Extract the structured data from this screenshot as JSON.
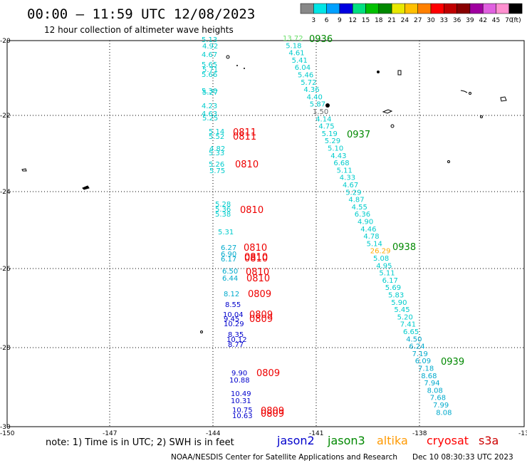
{
  "header": {
    "title": "00:00 – 11:59 UTC 12/08/2023",
    "subtitle": "12 hour collection of altimeter wave heights"
  },
  "legend": {
    "bins": [
      {
        "label": "3",
        "color": "#888888"
      },
      {
        "label": "6",
        "color": "#00e5e5"
      },
      {
        "label": "9",
        "color": "#00a0ff"
      },
      {
        "label": "12",
        "color": "#0000e0"
      },
      {
        "label": "15",
        "color": "#00e080"
      },
      {
        "label": "18",
        "color": "#00c000"
      },
      {
        "label": "21",
        "color": "#008800"
      },
      {
        "label": "24",
        "color": "#e8e800"
      },
      {
        "label": "27",
        "color": "#ffc000"
      },
      {
        "label": "30",
        "color": "#ff8000"
      },
      {
        "label": "33",
        "color": "#ff0000"
      },
      {
        "label": "36",
        "color": "#c00000"
      },
      {
        "label": "39",
        "color": "#880000"
      },
      {
        "label": "42",
        "color": "#a000a0"
      },
      {
        "label": "45",
        "color": "#e060e0"
      },
      {
        "label": "70",
        "color": "#ff90d0"
      },
      {
        "label": "(ft)",
        "color": "#000000"
      }
    ]
  },
  "axes": {
    "lon_ticks": [
      "-150",
      "-147",
      "-144",
      "-141",
      "-138",
      "-13"
    ],
    "lat_ticks": [
      "-20",
      "-22",
      "-24",
      "-26",
      "-28",
      "-30"
    ]
  },
  "satellites": [
    {
      "name": "jason2",
      "color": "#0000cc"
    },
    {
      "name": "jason3",
      "color": "#008800"
    },
    {
      "name": "altika",
      "color": "#ff9900"
    },
    {
      "name": "cryosat",
      "color": "#ff0000"
    },
    {
      "name": "s3a",
      "color": "#cc0000"
    }
  ],
  "footer": {
    "note": "note: 1) Time is in UTC; 2) SWH is in feet",
    "credit": "NOAA/NESDIS Center for Satellite Applications and Research",
    "timestamp": "Dec 10 08:30:33 UTC 2023"
  },
  "colors": {
    "cyan": "#00cccc",
    "teal": "#00aacc",
    "blue": "#0000cc",
    "green": "#008800",
    "red": "#ee0000",
    "gray": "#666666",
    "orange": "#ffaa00",
    "lightgreen": "#66dd66"
  },
  "track_a": {
    "values": [
      "5.13",
      "4.92",
      "4.67",
      "5.65",
      "5.71",
      "5.66",
      "5.30",
      "5.27",
      "4.23",
      "4.63",
      "5.25",
      "5.14",
      "5.52",
      "4.82",
      "5.33",
      "5.26",
      "5.75"
    ]
  },
  "track_a_lower": {
    "values": [
      "5.28",
      "5.36",
      "5.38",
      "5.31",
      "6.27",
      "6.90",
      "6.17",
      "6.50",
      "6.44",
      "8.12",
      "8.55",
      "10.04",
      "9.45",
      "10.29",
      "8.35",
      "10.12",
      "8.77",
      "9.90",
      "10.88",
      "10.49",
      "10.31",
      "10.75",
      "10.63"
    ]
  },
  "track_a_times": [
    "0811",
    "0811",
    "0810",
    "0810",
    "0810",
    "0810",
    "0810",
    "0810",
    "0810",
    "0809",
    "0809",
    "0809",
    "0809",
    "0809",
    "0809"
  ],
  "track_b": {
    "values": [
      "13.72",
      "5.18",
      "4.61",
      "5.41",
      "6.04",
      "5.46",
      "5.72",
      "4.36",
      "4.40",
      "5.87",
      "1.50",
      "4.14",
      "4.75",
      "5.19",
      "5.29",
      "5.10",
      "4.43",
      "6.68",
      "5.11",
      "4.33",
      "4.67",
      "5.29",
      "4.87",
      "4.55",
      "6.36",
      "4.90",
      "4.46",
      "4.78",
      "5.14",
      "26.29",
      "5.08",
      "4.95",
      "5.11",
      "6.17",
      "5.69",
      "5.83",
      "5.90",
      "5.45",
      "5.20",
      "7.41",
      "6.65",
      "4.50",
      "6.24",
      "7.19",
      "6.09",
      "7.18",
      "8.68",
      "7.94",
      "8.08",
      "7.68",
      "7.99",
      "8.08"
    ],
    "times": [
      "0936",
      "0937",
      "0938",
      "0939"
    ]
  }
}
